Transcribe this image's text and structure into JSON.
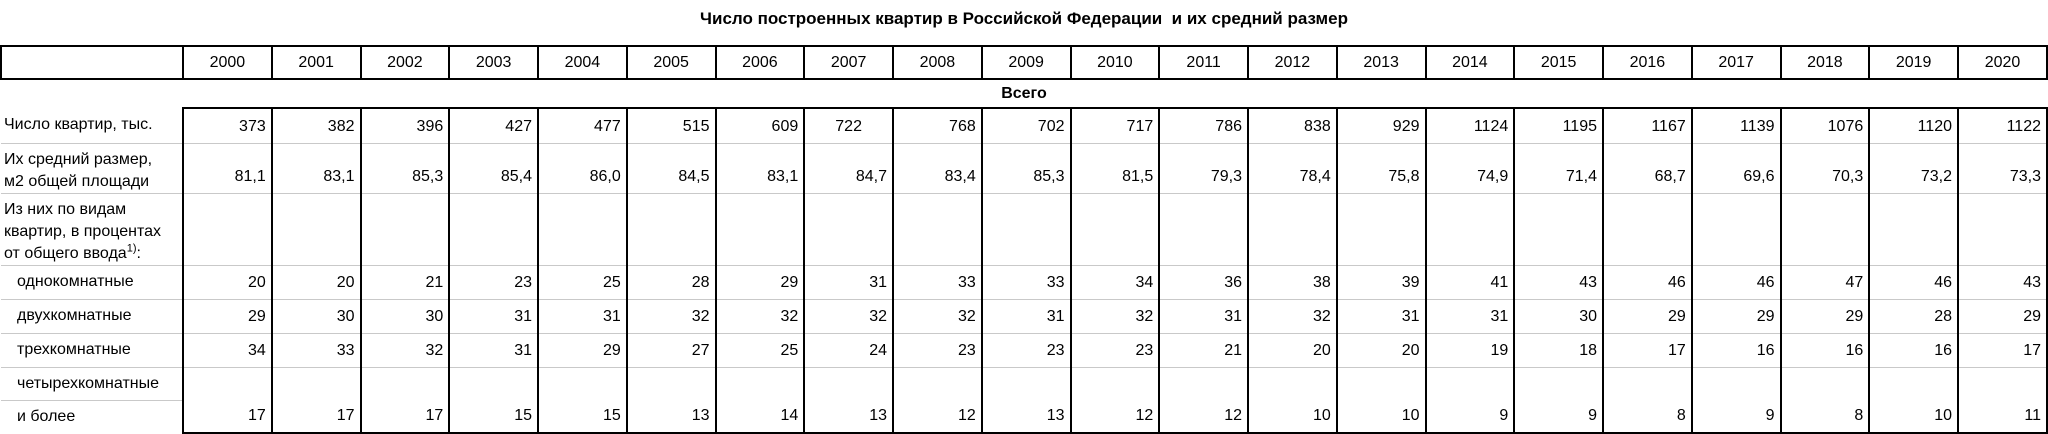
{
  "title": "Число построенных квартир в Российской Федерации  и их средний размер",
  "table": {
    "years": [
      "2000",
      "2001",
      "2002",
      "2003",
      "2004",
      "2005",
      "2006",
      "2007",
      "2008",
      "2009",
      "2010",
      "2011",
      "2012",
      "2013",
      "2014",
      "2015",
      "2016",
      "2017",
      "2018",
      "2019",
      "2020"
    ],
    "section_header": "Всего",
    "rows": [
      {
        "name": "apartments-count",
        "label_lines": [
          "Число квартир, тыс."
        ],
        "values": [
          "373",
          "382",
          "396",
          "427",
          "477",
          "515",
          "609",
          "722",
          "768",
          "702",
          "717",
          "786",
          "838",
          "929",
          "1124",
          "1195",
          "1167",
          "1139",
          "1076",
          "1120",
          "1122"
        ],
        "center_value_indexes": [
          7
        ]
      },
      {
        "name": "average-size",
        "label_lines": [
          "Их средний размер,",
          "м2 общей площади"
        ],
        "values": [
          "81,1",
          "83,1",
          "85,3",
          "85,4",
          "86,0",
          "84,5",
          "83,1",
          "84,7",
          "83,4",
          "85,3",
          "81,5",
          "79,3",
          "78,4",
          "75,8",
          "74,9",
          "71,4",
          "68,7",
          "69,6",
          "70,3",
          "73,2",
          "73,3"
        ]
      },
      {
        "name": "by-apartment-type",
        "label_lines": [
          "Из них по видам",
          "квартир, в процентах",
          "от общего ввода"
        ],
        "footnote_sup": "1)",
        "footnote_after": ":",
        "values": null
      },
      {
        "name": "one-room",
        "label_lines": [
          "однокомнатные"
        ],
        "values": [
          "20",
          "20",
          "21",
          "23",
          "25",
          "28",
          "29",
          "31",
          "33",
          "33",
          "34",
          "36",
          "38",
          "39",
          "41",
          "43",
          "46",
          "46",
          "47",
          "46",
          "43"
        ]
      },
      {
        "name": "two-room",
        "label_lines": [
          "двухкомнатные"
        ],
        "values": [
          "29",
          "30",
          "30",
          "31",
          "31",
          "32",
          "32",
          "32",
          "32",
          "31",
          "32",
          "31",
          "32",
          "31",
          "31",
          "30",
          "29",
          "29",
          "29",
          "28",
          "29"
        ]
      },
      {
        "name": "three-room",
        "label_lines": [
          "трехкомнатные"
        ],
        "values": [
          "34",
          "33",
          "32",
          "31",
          "29",
          "27",
          "25",
          "24",
          "23",
          "23",
          "23",
          "21",
          "20",
          "20",
          "19",
          "18",
          "17",
          "16",
          "16",
          "16",
          "17"
        ]
      },
      {
        "name": "four-room-and-more",
        "label_lines": [
          "четырехкомнатные",
          "и более"
        ],
        "values": [
          "17",
          "17",
          "17",
          "15",
          "15",
          "13",
          "14",
          "13",
          "12",
          "13",
          "12",
          "12",
          "10",
          "10",
          "9",
          "9",
          "8",
          "9",
          "8",
          "10",
          "11"
        ]
      }
    ]
  }
}
